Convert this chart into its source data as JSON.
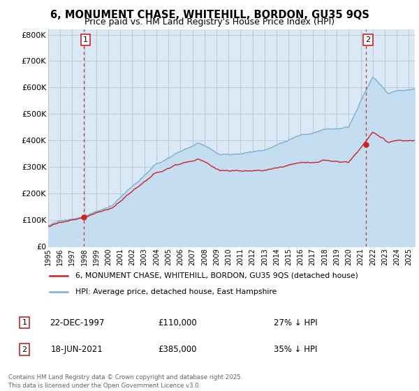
{
  "title": "6, MONUMENT CHASE, WHITEHILL, BORDON, GU35 9QS",
  "subtitle": "Price paid vs. HM Land Registry's House Price Index (HPI)",
  "ylabel_ticks": [
    "£0",
    "£100K",
    "£200K",
    "£300K",
    "£400K",
    "£500K",
    "£600K",
    "£700K",
    "£800K"
  ],
  "ytick_values": [
    0,
    100000,
    200000,
    300000,
    400000,
    500000,
    600000,
    700000,
    800000
  ],
  "ylim": [
    0,
    820000
  ],
  "xlim_start": 1995.0,
  "xlim_end": 2025.5,
  "sale1_date": "22-DEC-1997",
  "sale1_price": 110000,
  "sale1_hpi_diff": "27% ↓ HPI",
  "sale1_year": 1997.97,
  "sale2_date": "18-JUN-2021",
  "sale2_price": 385000,
  "sale2_hpi_diff": "35% ↓ HPI",
  "sale2_year": 2021.46,
  "legend_line1": "6, MONUMENT CHASE, WHITEHILL, BORDON, GU35 9QS (detached house)",
  "legend_line2": "HPI: Average price, detached house, East Hampshire",
  "footer": "Contains HM Land Registry data © Crown copyright and database right 2025.\nThis data is licensed under the Open Government Licence v3.0.",
  "hpi_color": "#7ab0d4",
  "hpi_fill_color": "#c5ddf0",
  "price_color": "#cc2222",
  "grid_color": "#cccccc",
  "bg_color": "#dbe8f5",
  "title_fontsize": 10.5,
  "subtitle_fontsize": 9
}
